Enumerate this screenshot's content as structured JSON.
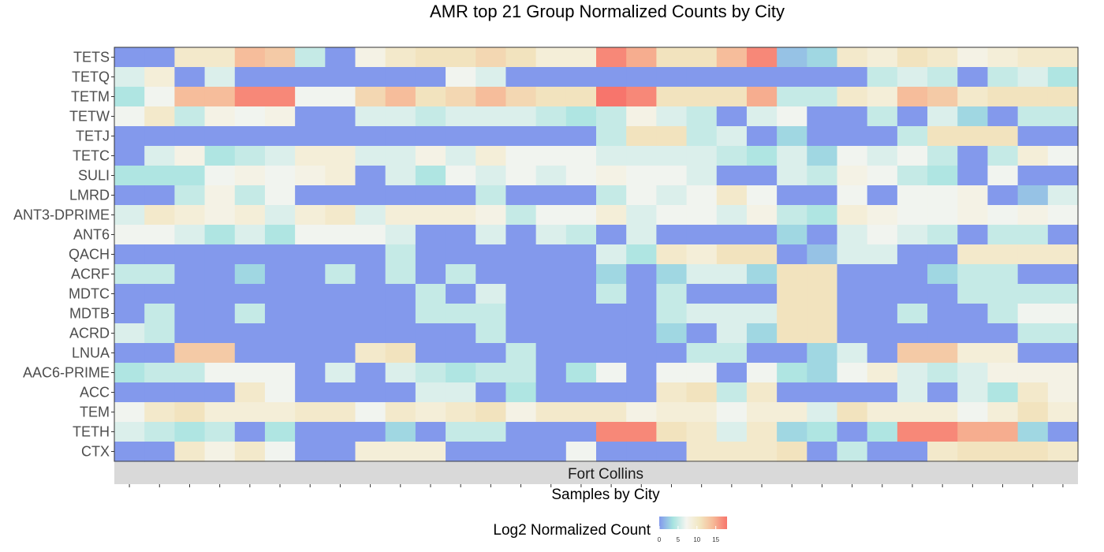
{
  "chart_data": {
    "type": "heatmap",
    "title": "AMR top 21 Group Normalized Counts by City",
    "xlabel": "Samples by City",
    "ylabel": "",
    "facet_label": "Fort Collins",
    "x_tick_labels_visible": false,
    "rows": [
      "TETS",
      "TETQ",
      "TETM",
      "TETW",
      "TETJ",
      "TETC",
      "SULI",
      "LMRD",
      "ANT3-DPRIME",
      "ANT6",
      "QACH",
      "ACRF",
      "MDTC",
      "MDTB",
      "ACRD",
      "LNUA",
      "AAC6-PRIME",
      "ACC",
      "TEM",
      "TETH",
      "CTX"
    ],
    "n_columns": 32,
    "values": [
      [
        0,
        0,
        10,
        10,
        14,
        13,
        5,
        0,
        8,
        10,
        11,
        11,
        12,
        11,
        9,
        9,
        17,
        15,
        11,
        11,
        14,
        17,
        2,
        3,
        10,
        9,
        11,
        10,
        8,
        9,
        10,
        10
      ],
      [
        6,
        9,
        0,
        6,
        0,
        0,
        0,
        0,
        0,
        0,
        0,
        7,
        6,
        0,
        0,
        0,
        0,
        0,
        0,
        0,
        0,
        0,
        0,
        0,
        0,
        5,
        6,
        5,
        0,
        5,
        6,
        4
      ],
      [
        4,
        7,
        14,
        14,
        17,
        17,
        7,
        7,
        12,
        14,
        11,
        12,
        14,
        12,
        11,
        11,
        18,
        17,
        11,
        11,
        11,
        15,
        5,
        5,
        10,
        9,
        14,
        13,
        10,
        11,
        11,
        11
      ],
      [
        7,
        10,
        5,
        8,
        7,
        8,
        0,
        0,
        6,
        6,
        5,
        6,
        6,
        6,
        5,
        4,
        5,
        8,
        6,
        5,
        0,
        6,
        7,
        0,
        0,
        5,
        0,
        6,
        3,
        0,
        5,
        5
      ],
      [
        0,
        0,
        0,
        0,
        0,
        0,
        0,
        0,
        0,
        0,
        0,
        0,
        0,
        0,
        0,
        0,
        5,
        11,
        11,
        5,
        6,
        0,
        3,
        0,
        0,
        0,
        5,
        11,
        11,
        11,
        0,
        0
      ],
      [
        0,
        6,
        8,
        4,
        5,
        6,
        9,
        9,
        6,
        6,
        8,
        6,
        9,
        7,
        7,
        7,
        6,
        6,
        6,
        6,
        5,
        4,
        6,
        3,
        7,
        6,
        7,
        5,
        0,
        5,
        9,
        7
      ],
      [
        4,
        4,
        4,
        7,
        8,
        7,
        8,
        9,
        0,
        6,
        4,
        7,
        6,
        7,
        6,
        7,
        8,
        7,
        7,
        6,
        0,
        0,
        6,
        5,
        8,
        7,
        5,
        4,
        0,
        7,
        0,
        0
      ],
      [
        0,
        0,
        5,
        8,
        5,
        7,
        0,
        0,
        0,
        0,
        0,
        0,
        5,
        0,
        0,
        0,
        5,
        7,
        6,
        7,
        10,
        7,
        0,
        0,
        7,
        0,
        7,
        7,
        8,
        0,
        2,
        6
      ],
      [
        6,
        10,
        9,
        8,
        9,
        6,
        9,
        10,
        6,
        9,
        9,
        9,
        8,
        5,
        7,
        7,
        9,
        6,
        7,
        7,
        6,
        8,
        5,
        4,
        9,
        8,
        7,
        7,
        8,
        7,
        8,
        7
      ],
      [
        7,
        7,
        6,
        4,
        6,
        4,
        7,
        7,
        7,
        6,
        0,
        0,
        6,
        0,
        6,
        5,
        0,
        6,
        0,
        0,
        0,
        0,
        3,
        0,
        6,
        7,
        6,
        5,
        0,
        5,
        5,
        0
      ],
      [
        0,
        0,
        0,
        0,
        0,
        0,
        0,
        0,
        0,
        5,
        0,
        0,
        0,
        0,
        0,
        0,
        6,
        4,
        10,
        9,
        11,
        11,
        0,
        2,
        6,
        6,
        0,
        0,
        10,
        10,
        10,
        10
      ],
      [
        5,
        5,
        0,
        0,
        3,
        0,
        0,
        5,
        0,
        5,
        0,
        5,
        0,
        0,
        0,
        0,
        3,
        0,
        3,
        6,
        6,
        3,
        11,
        11,
        0,
        0,
        0,
        3,
        5,
        5,
        0,
        0
      ],
      [
        0,
        0,
        0,
        0,
        0,
        0,
        0,
        0,
        0,
        0,
        5,
        0,
        6,
        0,
        0,
        0,
        5,
        0,
        5,
        0,
        0,
        0,
        11,
        11,
        0,
        0,
        0,
        0,
        5,
        5,
        5,
        5
      ],
      [
        0,
        5,
        0,
        0,
        5,
        0,
        0,
        0,
        0,
        0,
        5,
        5,
        5,
        0,
        0,
        0,
        0,
        0,
        5,
        6,
        6,
        6,
        11,
        11,
        0,
        0,
        5,
        0,
        0,
        5,
        7,
        7
      ],
      [
        6,
        5,
        0,
        0,
        0,
        0,
        0,
        0,
        0,
        0,
        0,
        0,
        5,
        0,
        0,
        0,
        0,
        0,
        3,
        0,
        6,
        3,
        11,
        11,
        0,
        0,
        0,
        0,
        0,
        0,
        5,
        5
      ],
      [
        0,
        0,
        13,
        13,
        0,
        0,
        0,
        0,
        10,
        11,
        0,
        0,
        0,
        5,
        0,
        0,
        0,
        0,
        0,
        5,
        5,
        0,
        0,
        3,
        6,
        0,
        13,
        13,
        9,
        9,
        0,
        0
      ],
      [
        4,
        5,
        5,
        7,
        7,
        7,
        0,
        6,
        0,
        6,
        5,
        4,
        5,
        5,
        0,
        4,
        7,
        0,
        7,
        7,
        0,
        7,
        4,
        3,
        7,
        9,
        6,
        5,
        6,
        8,
        8,
        8
      ],
      [
        0,
        0,
        0,
        0,
        10,
        7,
        0,
        0,
        0,
        0,
        6,
        6,
        0,
        4,
        0,
        0,
        0,
        0,
        10,
        11,
        5,
        10,
        0,
        0,
        0,
        0,
        6,
        0,
        6,
        4,
        10,
        8
      ],
      [
        7,
        10,
        11,
        9,
        9,
        9,
        10,
        10,
        7,
        10,
        9,
        10,
        11,
        8,
        10,
        10,
        10,
        8,
        9,
        9,
        7,
        9,
        9,
        6,
        11,
        9,
        9,
        9,
        7,
        9,
        11,
        9
      ],
      [
        6,
        5,
        4,
        5,
        0,
        4,
        0,
        0,
        0,
        3,
        0,
        5,
        5,
        0,
        0,
        0,
        17,
        17,
        11,
        10,
        6,
        10,
        3,
        4,
        0,
        4,
        17,
        17,
        15,
        15,
        3,
        0
      ],
      [
        0,
        0,
        10,
        8,
        10,
        7,
        0,
        0,
        9,
        9,
        9,
        0,
        0,
        0,
        0,
        7,
        0,
        0,
        0,
        10,
        10,
        10,
        11,
        0,
        5,
        0,
        0,
        10,
        11,
        11,
        11,
        10
      ]
    ],
    "color_scale": {
      "title": "Log2 Normalized Count",
      "domain": [
        0,
        18
      ],
      "breaks": [
        0,
        5,
        10,
        15
      ],
      "colors": [
        "#8399ec",
        "#a6e3e0",
        "#f5f5f0",
        "#f2e6c0",
        "#f6b896",
        "#f7756c"
      ]
    },
    "facet_strip_color": "#d9d9d9"
  }
}
